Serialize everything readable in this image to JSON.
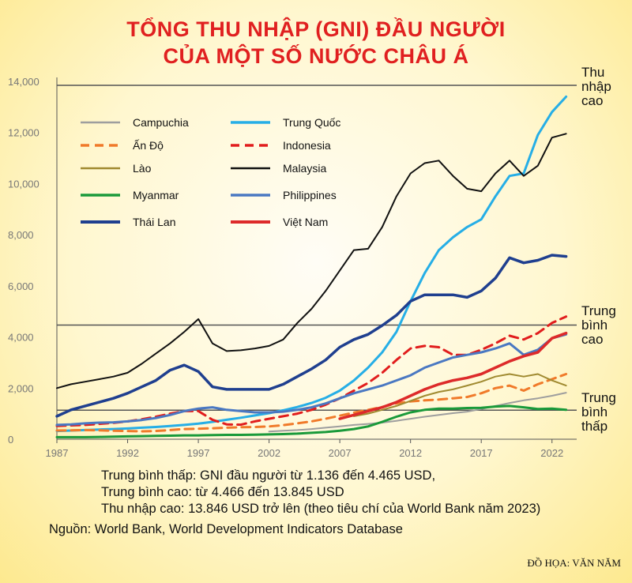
{
  "title": {
    "line1": "TỔNG THU NHẬP (GNI) ĐẦU NGƯỜI",
    "line2": "CỦA MỘT SỐ NƯỚC CHÂU Á"
  },
  "chart_data": {
    "type": "line",
    "x": [
      1987,
      1988,
      1989,
      1990,
      1991,
      1992,
      1993,
      1994,
      1995,
      1996,
      1997,
      1998,
      1999,
      2000,
      2001,
      2002,
      2003,
      2004,
      2005,
      2006,
      2007,
      2008,
      2009,
      2010,
      2011,
      2012,
      2013,
      2014,
      2015,
      2016,
      2017,
      2018,
      2019,
      2020,
      2021,
      2022,
      2023
    ],
    "xticks": [
      "1987",
      "1992",
      "1997",
      "2002",
      "2007",
      "2012",
      "2017",
      "2022"
    ],
    "xtick_values": [
      1987,
      1992,
      1997,
      2002,
      2007,
      2012,
      2017,
      2022
    ],
    "yticks": [
      "0",
      "2,000",
      "4,000",
      "6,000",
      "8,000",
      "10,000",
      "12,000",
      "14,000"
    ],
    "ytick_values": [
      0,
      2000,
      4000,
      6000,
      8000,
      10000,
      12000,
      14000
    ],
    "ylim": [
      0,
      14000
    ],
    "xlim": [
      1987,
      2023.3
    ],
    "reference_lines": [
      {
        "name": "Thu nhập cao",
        "label_lines": [
          "Thu",
          "nhập",
          "cao"
        ],
        "value": 13846
      },
      {
        "name": "Trung bình cao",
        "label_lines": [
          "Trung",
          "bình",
          "cao"
        ],
        "value": 4466
      },
      {
        "name": "Trung bình thấp",
        "label_lines": [
          "Trung",
          "bình",
          "thấp"
        ],
        "value": 1136
      }
    ],
    "series": [
      {
        "name": "Campuchia",
        "color": "#9e9e9e",
        "dash": false,
        "width": 2,
        "values": [
          null,
          null,
          null,
          null,
          null,
          null,
          null,
          null,
          null,
          null,
          null,
          null,
          null,
          null,
          null,
          300,
          330,
          360,
          400,
          450,
          500,
          560,
          600,
          650,
          720,
          800,
          880,
          950,
          1020,
          1080,
          1180,
          1300,
          1420,
          1520,
          1600,
          1700,
          1820
        ]
      },
      {
        "name": "Trung Quốc",
        "color": "#26aee6",
        "dash": false,
        "width": 3,
        "values": [
          320,
          340,
          360,
          380,
          400,
          420,
          450,
          480,
          520,
          560,
          610,
          680,
          760,
          840,
          930,
          1020,
          1130,
          1260,
          1420,
          1620,
          1900,
          2300,
          2800,
          3400,
          4200,
          5400,
          6500,
          7400,
          7900,
          8300,
          8600,
          9500,
          10300,
          10400,
          11900,
          12800,
          13400
        ]
      },
      {
        "name": "Ấn Độ",
        "color": "#f07a2a",
        "dash": true,
        "width": 3,
        "values": [
          340,
          350,
          360,
          350,
          330,
          320,
          310,
          320,
          360,
          400,
          410,
          430,
          450,
          470,
          480,
          500,
          550,
          620,
          700,
          800,
          920,
          1040,
          1150,
          1260,
          1400,
          1480,
          1520,
          1550,
          1600,
          1650,
          1800,
          2000,
          2100,
          1900,
          2150,
          2350,
          2550
        ]
      },
      {
        "name": "Indonesia",
        "color": "#e11d1d",
        "dash": true,
        "width": 3,
        "values": [
          520,
          540,
          560,
          600,
          640,
          700,
          780,
          880,
          1000,
          1100,
          1100,
          760,
          580,
          570,
          700,
          800,
          900,
          1000,
          1150,
          1350,
          1600,
          1900,
          2200,
          2600,
          3100,
          3550,
          3650,
          3600,
          3300,
          3300,
          3500,
          3750,
          4050,
          3900,
          4150,
          4550,
          4800
        ]
      },
      {
        "name": "Lào",
        "color": "#a08a30",
        "dash": false,
        "width": 2,
        "values": [
          null,
          null,
          null,
          null,
          null,
          null,
          null,
          null,
          null,
          null,
          null,
          null,
          null,
          null,
          null,
          null,
          null,
          null,
          null,
          null,
          null,
          900,
          1000,
          1150,
          1300,
          1500,
          1700,
          1850,
          1950,
          2100,
          2250,
          2450,
          2550,
          2450,
          2550,
          2300,
          2100
        ]
      },
      {
        "name": "Malaysia",
        "color": "#111111",
        "dash": false,
        "width": 2,
        "values": [
          2000,
          2150,
          2250,
          2350,
          2450,
          2600,
          2950,
          3350,
          3750,
          4200,
          4700,
          3750,
          3450,
          3480,
          3550,
          3650,
          3900,
          4550,
          5100,
          5800,
          6600,
          7400,
          7450,
          8300,
          9500,
          10400,
          10800,
          10900,
          10300,
          9800,
          9700,
          10400,
          10900,
          10300,
          10700,
          11800,
          11950
        ]
      },
      {
        "name": "Myanmar",
        "color": "#1a9a3a",
        "dash": false,
        "width": 3,
        "values": [
          80,
          80,
          80,
          90,
          100,
          110,
          120,
          130,
          140,
          150,
          150,
          160,
          170,
          170,
          180,
          190,
          200,
          220,
          250,
          280,
          330,
          400,
          500,
          680,
          880,
          1050,
          1150,
          1200,
          1200,
          1220,
          1230,
          1280,
          1300,
          1250,
          1180,
          1200,
          1150
        ]
      },
      {
        "name": "Philippines",
        "color": "#4a78c2",
        "dash": false,
        "width": 3,
        "values": [
          560,
          580,
          620,
          650,
          660,
          700,
          750,
          830,
          950,
          1100,
          1200,
          1250,
          1150,
          1100,
          1050,
          1050,
          1080,
          1150,
          1250,
          1400,
          1600,
          1800,
          1950,
          2100,
          2300,
          2500,
          2800,
          3000,
          3200,
          3300,
          3400,
          3550,
          3750,
          3300,
          3500,
          3950,
          4100
        ]
      },
      {
        "name": "Thái Lan",
        "color": "#1f3f8f",
        "dash": false,
        "width": 3.5,
        "values": [
          900,
          1150,
          1300,
          1450,
          1600,
          1800,
          2050,
          2300,
          2700,
          2900,
          2650,
          2050,
          1950,
          1950,
          1950,
          1950,
          2150,
          2450,
          2750,
          3100,
          3600,
          3900,
          4100,
          4450,
          4850,
          5400,
          5650,
          5650,
          5650,
          5550,
          5800,
          6300,
          7100,
          6900,
          7000,
          7200,
          7150
        ]
      },
      {
        "name": "Việt Nam",
        "color": "#dd2a2a",
        "dash": false,
        "width": 3.5,
        "values": [
          null,
          null,
          null,
          null,
          null,
          null,
          null,
          null,
          null,
          null,
          null,
          null,
          null,
          null,
          null,
          null,
          null,
          null,
          null,
          null,
          800,
          950,
          1100,
          1250,
          1450,
          1700,
          1950,
          2150,
          2300,
          2400,
          2550,
          2800,
          3050,
          3250,
          3400,
          3950,
          4150
        ]
      }
    ]
  },
  "legend": {
    "items": [
      {
        "name": "Campuchia"
      },
      {
        "name": "Trung Quốc"
      },
      {
        "name": "Ấn Độ"
      },
      {
        "name": "Indonesia"
      },
      {
        "name": "Lào"
      },
      {
        "name": "Malaysia"
      },
      {
        "name": "Myanmar"
      },
      {
        "name": "Philippines"
      },
      {
        "name": "Thái Lan"
      },
      {
        "name": "Việt Nam"
      }
    ]
  },
  "notes": {
    "line1": "Trung bình thấp: GNI đầu người từ 1.136 đến 4.465 USD,",
    "line2": "Trung bình cao: từ 4.466 đến 13.845 USD",
    "line3": "Thu nhập cao: 13.846 USD trở lên (theo tiêu chí của World Bank năm 2023)"
  },
  "source": "Nguồn: World Bank, World Development Indicators Database",
  "credit": "ĐỒ HỌA: VĂN NĂM"
}
